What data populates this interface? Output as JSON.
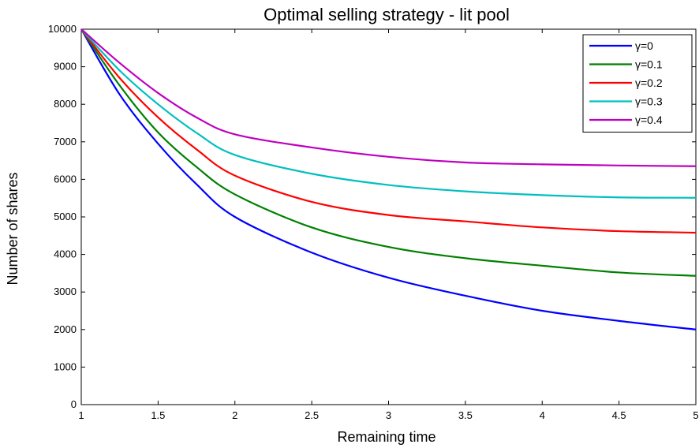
{
  "chart_data": {
    "type": "line",
    "title": "Optimal selling strategy - lit pool",
    "xlabel": "Remaining time",
    "ylabel": "Number of shares",
    "xlim": [
      1,
      5
    ],
    "ylim": [
      0,
      10000
    ],
    "xticks": [
      1,
      1.5,
      2,
      2.5,
      3,
      3.5,
      4,
      4.5,
      5
    ],
    "xtick_labels": [
      "1",
      "1.5",
      "2",
      "2.5",
      "3",
      "3.5",
      "4",
      "4.5",
      "5"
    ],
    "yticks": [
      0,
      1000,
      2000,
      3000,
      4000,
      5000,
      6000,
      7000,
      8000,
      9000,
      10000
    ],
    "ytick_labels": [
      "0",
      "1000",
      "2000",
      "3000",
      "4000",
      "5000",
      "6000",
      "7000",
      "8000",
      "9000",
      "10000"
    ],
    "grid": false,
    "legend_position": "top-right",
    "x": [
      1,
      1.25,
      1.5,
      1.75,
      2,
      2.5,
      3,
      3.5,
      4,
      4.5,
      5
    ],
    "series": [
      {
        "name": "γ=0",
        "color": "#0000ff",
        "values": [
          10000,
          8260,
          6950,
          5870,
          5000,
          4050,
          3380,
          2900,
          2500,
          2230,
          2000
        ]
      },
      {
        "name": "γ=0.1",
        "color": "#008000",
        "values": [
          10000,
          8500,
          7250,
          6330,
          5600,
          4720,
          4200,
          3900,
          3700,
          3520,
          3430
        ]
      },
      {
        "name": "γ=0.2",
        "color": "#ff0000",
        "values": [
          10000,
          8700,
          7650,
          6800,
          6100,
          5400,
          5050,
          4880,
          4720,
          4620,
          4580
        ]
      },
      {
        "name": "γ=0.3",
        "color": "#00bfbf",
        "values": [
          10000,
          8900,
          8000,
          7240,
          6650,
          6150,
          5850,
          5680,
          5580,
          5520,
          5510
        ]
      },
      {
        "name": "γ=0.4",
        "color": "#bf00bf",
        "values": [
          10000,
          9100,
          8300,
          7650,
          7200,
          6850,
          6600,
          6450,
          6400,
          6370,
          6350
        ]
      }
    ]
  }
}
